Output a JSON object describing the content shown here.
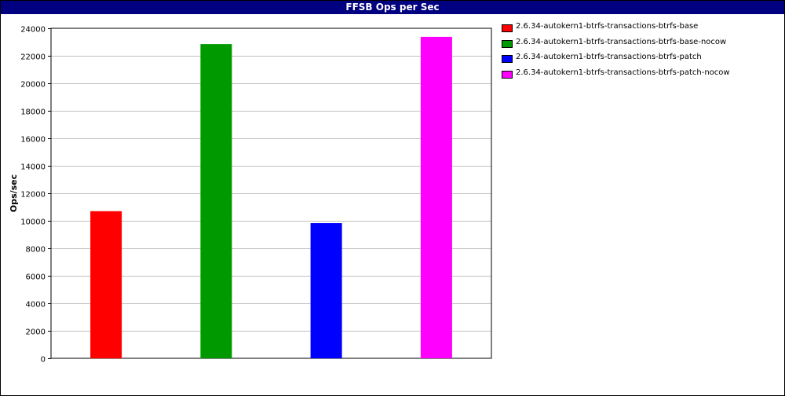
{
  "chart_data": {
    "type": "bar",
    "title": "FFSB Ops per Sec",
    "xlabel": "",
    "ylabel": "Ops/sec",
    "ylim": [
      0,
      24000
    ],
    "yticks": [
      0,
      2000,
      4000,
      6000,
      8000,
      10000,
      12000,
      14000,
      16000,
      18000,
      20000,
      22000,
      24000
    ],
    "grid": true,
    "legend_position": "right",
    "series": [
      {
        "name": "2.6.34-autokern1-btrfs-transactions-btrfs-base",
        "value": 10700,
        "color": "#ff0000"
      },
      {
        "name": "2.6.34-autokern1-btrfs-transactions-btrfs-base-nocow",
        "value": 22850,
        "color": "#009900"
      },
      {
        "name": "2.6.34-autokern1-btrfs-transactions-btrfs-patch",
        "value": 9830,
        "color": "#0000ff"
      },
      {
        "name": "2.6.34-autokern1-btrfs-transactions-btrfs-patch-nocow",
        "value": 23380,
        "color": "#ff00ff"
      }
    ]
  }
}
